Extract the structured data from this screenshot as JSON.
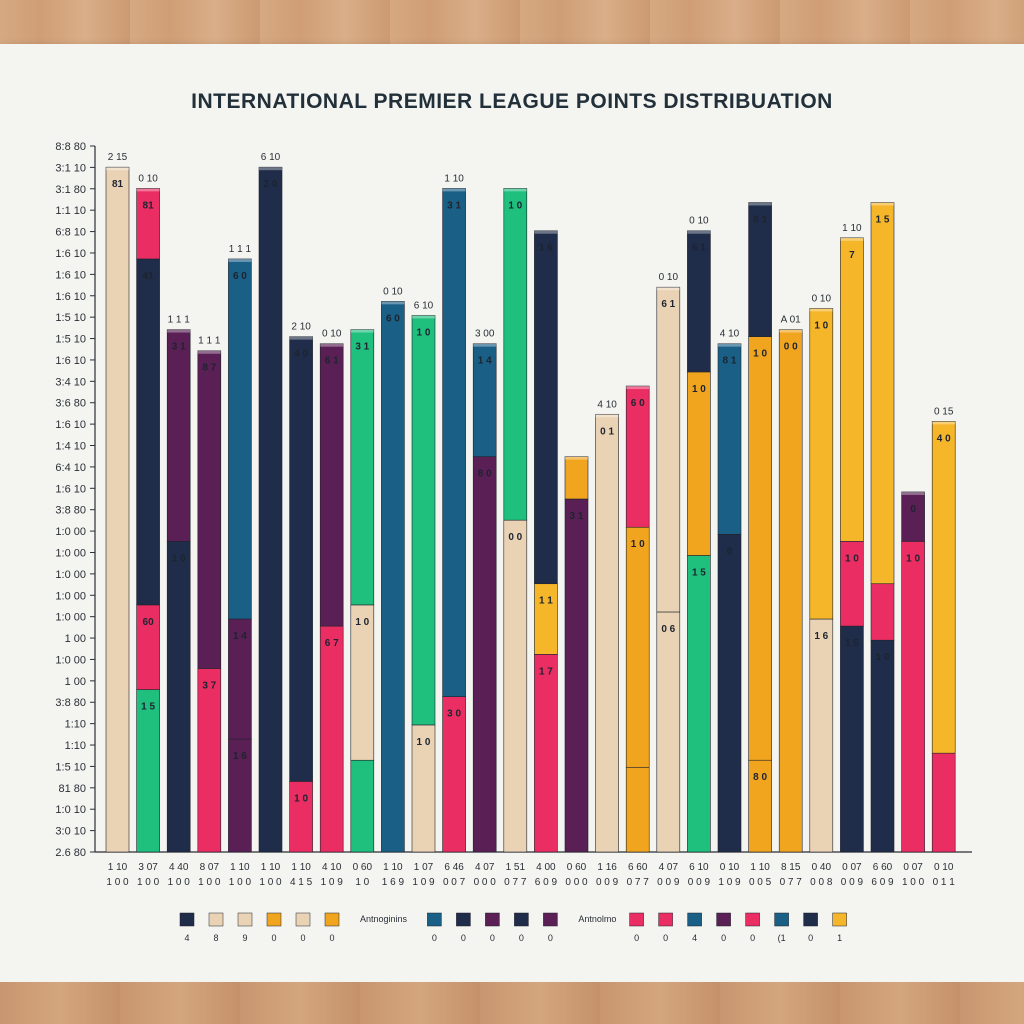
{
  "title": "INTERNATIONAL PREMIER LEAGUE POINTS DISTRIBUATION",
  "colors": {
    "navy": "#1f2c4a",
    "beige": "#ead3b4",
    "pink": "#ea2d63",
    "purple": "#5a1f55",
    "green": "#1fbf7e",
    "teal": "#1a5f86",
    "orange": "#f1a51e",
    "gold": "#f5b629"
  },
  "chart_data": {
    "type": "bar",
    "stacked": true,
    "title": "INTERNATIONAL PREMIER LEAGUE POINTS DISTRIBUATION",
    "ylim": [
      0,
      100
    ],
    "y_tick_labels": [
      "2.6 80",
      "3:0 10",
      "1:0 10",
      "81 80",
      "1:5 10",
      "1:10",
      "1:10",
      "3:8 80",
      "1 00",
      "1:0 00",
      "1 00",
      "1:0 00",
      "1:0 00",
      "1:0 00",
      "1:0 00",
      "1:0 00",
      "3:8 80",
      "1:6 10",
      "6:4 10",
      "1:4 10",
      "1:6 10",
      "3:6 80",
      "3:4 10",
      "1:6 10",
      "1:5 10",
      "1:5 10",
      "1:6 10",
      "1:6 10",
      "1:6 10",
      "6:8 10",
      "1:1 10",
      "3:1 80",
      "3:1 10",
      "8:8 80"
    ],
    "categories": [
      "1 10",
      "3 07",
      "4 40",
      "8 07",
      "1 10",
      "1 10",
      "1 10",
      "4 10",
      "0 60",
      "1 10",
      "1 07",
      "6 46",
      "4 07",
      "1 51",
      "4 00",
      "0 60",
      "1 16",
      "6 60",
      "4 07",
      "6 10",
      "0 10",
      "1 10",
      "8 15",
      "0 40",
      "0 07",
      "6 60",
      "0 07",
      "0 10"
    ],
    "categories_line2": [
      "1 0 0",
      "1 0 0",
      "1 0 0",
      "1 0 0",
      "1 0 0",
      "1 0 0",
      "4 1 5",
      "1 0 9",
      "1 0",
      "1 6 9",
      "1 0 9",
      "0 0 7",
      "0 0 0",
      "0 7 7",
      "6 0 9",
      "0 0 0",
      "0 0 9",
      "0 7 7",
      "0 0 9",
      "0 0 9",
      "1 0 9",
      "0 0 5",
      "0 7 7",
      "0 0 8",
      "0 0 9",
      "6 0 9",
      "1 0 0",
      "0 1 1"
    ],
    "bar_tops": [
      "2 15",
      "0 10",
      "1 1 1",
      "1 1 1",
      "1 1 1",
      "6 10",
      "2 10",
      "0 10",
      "",
      "0 10",
      "6 10",
      "1 10",
      "3 00",
      "",
      "",
      "",
      "4 10",
      "",
      "0 10",
      "0 10",
      "4 10",
      "",
      "A 01",
      "0 10",
      "1 10",
      "",
      "",
      "0 15"
    ],
    "series_colors": [
      "navy",
      "beige",
      "pink",
      "purple",
      "green",
      "teal",
      "orange",
      "gold"
    ],
    "bars": [
      {
        "total": 97,
        "segments": [
          {
            "c": "beige",
            "v": 97,
            "label": "81"
          }
        ]
      },
      {
        "total": 94,
        "segments": [
          {
            "c": "green",
            "v": 23,
            "label": "1 5"
          },
          {
            "c": "pink",
            "v": 12,
            "label": "60"
          },
          {
            "c": "navy",
            "v": 49,
            "label": "41"
          },
          {
            "c": "pink",
            "v": 10,
            "label": "81"
          }
        ]
      },
      {
        "total": 74,
        "segments": [
          {
            "c": "navy",
            "v": 44,
            "label": "1 0"
          },
          {
            "c": "purple",
            "v": 30,
            "label": "3 1"
          },
          {
            "c": "pink",
            "v": 0,
            "label": ""
          }
        ]
      },
      {
        "total": 71,
        "segments": [
          {
            "c": "pink",
            "v": 26,
            "label": "3 7"
          },
          {
            "c": "purple",
            "v": 45,
            "label": "8 7"
          }
        ]
      },
      {
        "total": 84,
        "segments": [
          {
            "c": "purple",
            "v": 16,
            "label": "1 6"
          },
          {
            "c": "purple",
            "v": 17,
            "label": "1 4"
          },
          {
            "c": "teal",
            "v": 51,
            "label": "6 0"
          }
        ]
      },
      {
        "total": 97,
        "segments": [
          {
            "c": "navy",
            "v": 97,
            "label": "2 0"
          }
        ]
      },
      {
        "total": 73,
        "segments": [
          {
            "c": "pink",
            "v": 10,
            "label": "1 0"
          },
          {
            "c": "navy",
            "v": 63,
            "label": "4 0"
          }
        ]
      },
      {
        "total": 72,
        "segments": [
          {
            "c": "pink",
            "v": 32,
            "label": "6 7"
          },
          {
            "c": "purple",
            "v": 40,
            "label": "6 1"
          }
        ]
      },
      {
        "total": 74,
        "segments": [
          {
            "c": "green",
            "v": 13,
            "label": ""
          },
          {
            "c": "beige",
            "v": 22,
            "label": "1 0"
          },
          {
            "c": "green",
            "v": 39,
            "label": "3 1"
          }
        ]
      },
      {
        "total": 78,
        "segments": [
          {
            "c": "teal",
            "v": 78,
            "label": "6 0"
          }
        ]
      },
      {
        "total": 76,
        "segments": [
          {
            "c": "beige",
            "v": 18,
            "label": "1 0"
          },
          {
            "c": "green",
            "v": 58,
            "label": "1 0"
          }
        ]
      },
      {
        "total": 94,
        "segments": [
          {
            "c": "pink",
            "v": 22,
            "label": "3 0"
          },
          {
            "c": "teal",
            "v": 72,
            "label": "3 1"
          }
        ]
      },
      {
        "total": 72,
        "segments": [
          {
            "c": "purple",
            "v": 56,
            "label": "8 0"
          },
          {
            "c": "teal",
            "v": 16,
            "label": "1 4"
          }
        ]
      },
      {
        "total": 94,
        "segments": [
          {
            "c": "beige",
            "v": 47,
            "label": "0 0"
          },
          {
            "c": "green",
            "v": 47,
            "label": "1 0"
          }
        ]
      },
      {
        "total": 88,
        "segments": [
          {
            "c": "pink",
            "v": 28,
            "label": "1 7"
          },
          {
            "c": "gold",
            "v": 10,
            "label": "1 1"
          },
          {
            "c": "navy",
            "v": 50,
            "label": "1 6"
          }
        ]
      },
      {
        "total": 56,
        "segments": [
          {
            "c": "purple",
            "v": 50,
            "label": "3 1"
          },
          {
            "c": "orange",
            "v": 6,
            "label": ""
          }
        ]
      },
      {
        "total": 62,
        "segments": [
          {
            "c": "beige",
            "v": 62,
            "label": "0 1"
          }
        ]
      },
      {
        "total": 66,
        "segments": [
          {
            "c": "orange",
            "v": 12,
            "label": ""
          },
          {
            "c": "orange",
            "v": 34,
            "label": "1 0"
          },
          {
            "c": "pink",
            "v": 20,
            "label": "6 0"
          }
        ]
      },
      {
        "total": 80,
        "segments": [
          {
            "c": "beige",
            "v": 34,
            "label": "0 6"
          },
          {
            "c": "beige",
            "v": 46,
            "label": "6 1"
          }
        ]
      },
      {
        "total": 88,
        "segments": [
          {
            "c": "green",
            "v": 42,
            "label": "1 5"
          },
          {
            "c": "orange",
            "v": 26,
            "label": "1 0"
          },
          {
            "c": "navy",
            "v": 20,
            "label": "6 1"
          }
        ]
      },
      {
        "total": 72,
        "segments": [
          {
            "c": "navy",
            "v": 45,
            "label": "0"
          },
          {
            "c": "teal",
            "v": 27,
            "label": "8 1"
          }
        ]
      },
      {
        "total": 92,
        "segments": [
          {
            "c": "orange",
            "v": 13,
            "label": "8 0"
          },
          {
            "c": "orange",
            "v": 60,
            "label": "1 0"
          },
          {
            "c": "navy",
            "v": 19,
            "label": "8 1"
          }
        ]
      },
      {
        "total": 74,
        "segments": [
          {
            "c": "orange",
            "v": 74,
            "label": "0 0"
          }
        ]
      },
      {
        "total": 77,
        "segments": [
          {
            "c": "beige",
            "v": 33,
            "label": "1 6"
          },
          {
            "c": "gold",
            "v": 44,
            "label": "1 0"
          }
        ]
      },
      {
        "total": 87,
        "segments": [
          {
            "c": "navy",
            "v": 32,
            "label": "1 5"
          },
          {
            "c": "pink",
            "v": 12,
            "label": "1 0"
          },
          {
            "c": "gold",
            "v": 43,
            "label": "7"
          }
        ]
      },
      {
        "total": 92,
        "segments": [
          {
            "c": "navy",
            "v": 30,
            "label": "1 0"
          },
          {
            "c": "pink",
            "v": 8,
            "label": ""
          },
          {
            "c": "gold",
            "v": 54,
            "label": "1 5"
          }
        ]
      },
      {
        "total": 51,
        "segments": [
          {
            "c": "pink",
            "v": 44,
            "label": "1 0"
          },
          {
            "c": "purple",
            "v": 7,
            "label": "0"
          }
        ]
      },
      {
        "total": 61,
        "segments": [
          {
            "c": "pink",
            "v": 14,
            "label": ""
          },
          {
            "c": "gold",
            "v": 47,
            "label": "4 0"
          }
        ]
      }
    ],
    "legend": {
      "groups": [
        {
          "label": "",
          "items": [
            {
              "c": "navy",
              "t": "4"
            },
            {
              "c": "beige",
              "t": "8"
            },
            {
              "c": "beige",
              "t": "9"
            },
            {
              "c": "orange",
              "t": "0"
            },
            {
              "c": "beige",
              "t": "0"
            },
            {
              "c": "orange",
              "t": "0"
            }
          ]
        },
        {
          "label": "Antnoginins",
          "items": [
            {
              "c": "teal",
              "t": "0"
            },
            {
              "c": "navy",
              "t": "0"
            },
            {
              "c": "purple",
              "t": "0"
            },
            {
              "c": "navy",
              "t": "0"
            },
            {
              "c": "purple",
              "t": "0"
            }
          ]
        },
        {
          "label": "Antnolmo",
          "items": [
            {
              "c": "pink",
              "t": "0"
            },
            {
              "c": "pink",
              "t": "0"
            },
            {
              "c": "teal",
              "t": "4"
            },
            {
              "c": "purple",
              "t": "0"
            },
            {
              "c": "pink",
              "t": "0"
            },
            {
              "c": "teal",
              "t": "(1"
            },
            {
              "c": "navy",
              "t": "0"
            },
            {
              "c": "gold",
              "t": "1"
            }
          ]
        }
      ]
    }
  }
}
